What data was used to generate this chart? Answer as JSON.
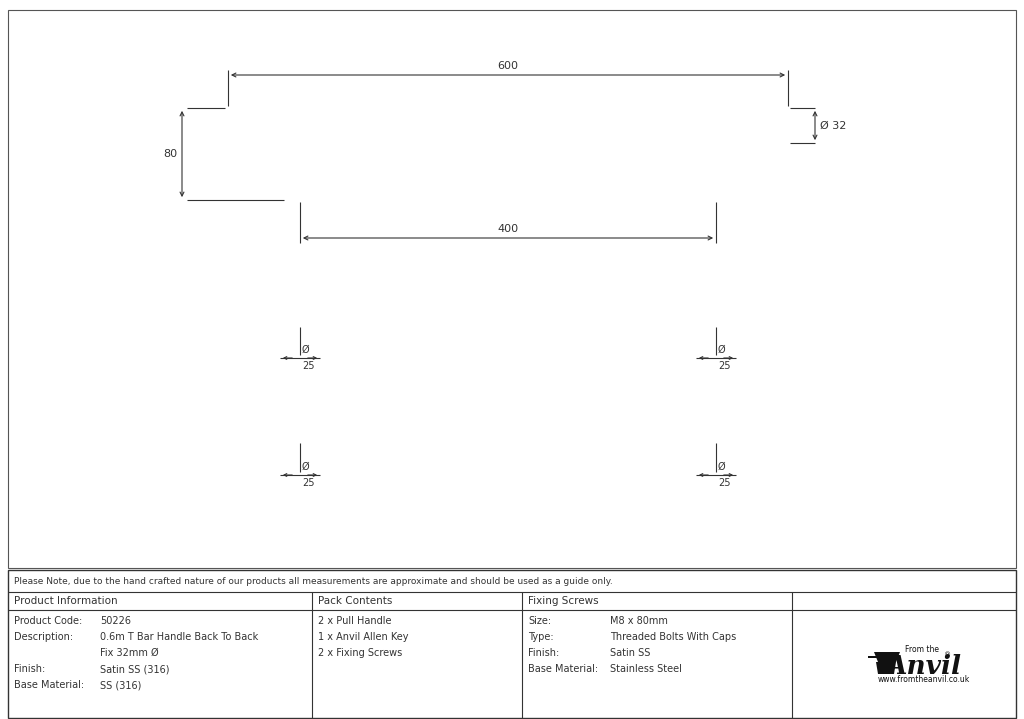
{
  "bg_color": "#ffffff",
  "line_color": "#333333",
  "note_text": "Please Note, due to the hand crafted nature of our products all measurements are approximate and should be used as a guide only.",
  "product_info": {
    "header": "Product Information",
    "rows": [
      [
        "Product Code:",
        "50226"
      ],
      [
        "Description:",
        "0.6m T Bar Handle Back To Back"
      ],
      [
        "",
        "Fix 32mm Ø"
      ],
      [
        "Finish:",
        "Satin SS (316)"
      ],
      [
        "Base Material:",
        "SS (316)"
      ]
    ]
  },
  "pack_contents": {
    "header": "Pack Contents",
    "rows": [
      "2 x Pull Handle",
      "1 x Anvil Allen Key",
      "2 x Fixing Screws"
    ]
  },
  "fixing_screws": {
    "header": "Fixing Screws",
    "rows": [
      [
        "Size:",
        "M8 x 80mm"
      ],
      [
        "Type:",
        "Threaded Bolts With Caps"
      ],
      [
        "Finish:",
        "Satin SS"
      ],
      [
        "Base Material:",
        "Stainless Steel"
      ]
    ]
  },
  "dim_600": "600",
  "dim_400": "400",
  "dim_80": "80",
  "dim_32": "Ø 32",
  "dim_25_label": "25",
  "dim_phi_label": "Ø"
}
